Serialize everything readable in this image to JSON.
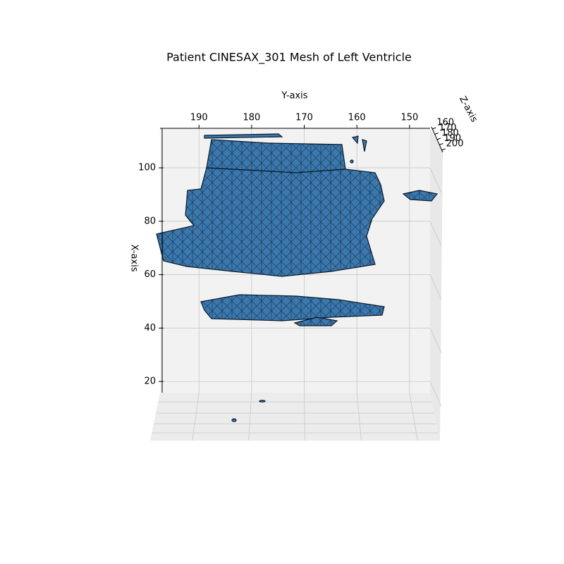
{
  "chart_data": {
    "type": "mesh3d",
    "title": "Patient CINESAX_301 Mesh of Left Ventricle",
    "y_axis": {
      "label": "Y-axis",
      "lim": [
        197.4,
        146.1
      ],
      "ticks": [
        190,
        180,
        170,
        160,
        150
      ]
    },
    "x_axis": {
      "label": "X-axis",
      "lim": [
        15.8,
        114.8
      ],
      "ticks": [
        20,
        40,
        60,
        80,
        100
      ]
    },
    "z_axis": {
      "label": "Z-axis",
      "lim": [
        156,
        204
      ],
      "ticks": [
        160,
        170,
        180,
        190,
        200
      ]
    },
    "grid": true,
    "color": "#3b78ae"
  }
}
